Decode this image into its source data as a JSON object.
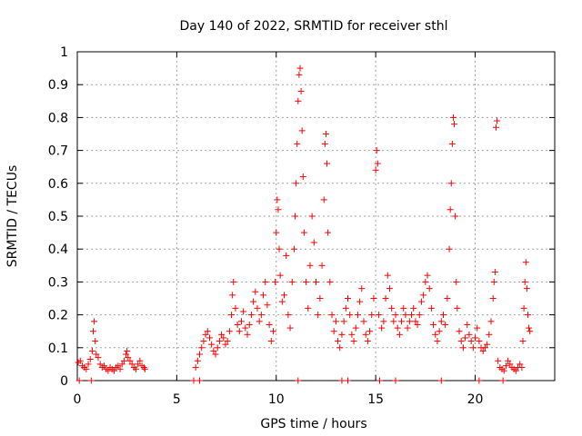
{
  "chart_data": {
    "type": "scatter",
    "title": "Day 140 of 2022, SRMTID for receiver sthl",
    "xlabel": "GPS time / hours",
    "ylabel": "SRMTID / TECUs",
    "xlim": [
      0,
      24
    ],
    "ylim": [
      0,
      1
    ],
    "x_ticks": [
      "0",
      "5",
      "10",
      "15",
      "20"
    ],
    "x_tick_values": [
      0,
      5,
      10,
      15,
      20
    ],
    "y_ticks": [
      "0",
      "0.1",
      "0.2",
      "0.3",
      "0.4",
      "0.5",
      "0.6",
      "0.7",
      "0.8",
      "0.9",
      "1"
    ],
    "y_tick_values": [
      0,
      0.1,
      0.2,
      0.3,
      0.4,
      0.5,
      0.6,
      0.7,
      0.8,
      0.9,
      1
    ],
    "grid": true,
    "marker": "+",
    "color": "#ff0000",
    "series": [
      {
        "name": "SRMTID",
        "points": [
          [
            0.05,
            0.055
          ],
          [
            0.15,
            0.06
          ],
          [
            0.25,
            0.045
          ],
          [
            0.35,
            0.04
          ],
          [
            0.45,
            0.035
          ],
          [
            0.55,
            0.05
          ],
          [
            0.65,
            0.065
          ],
          [
            0.75,
            0.09
          ],
          [
            0.8,
            0.15
          ],
          [
            0.85,
            0.18
          ],
          [
            0.9,
            0.12
          ],
          [
            0.95,
            0.08
          ],
          [
            1.05,
            0.07
          ],
          [
            1.15,
            0.05
          ],
          [
            1.25,
            0.04
          ],
          [
            1.35,
            0.045
          ],
          [
            1.45,
            0.035
          ],
          [
            1.55,
            0.03
          ],
          [
            1.65,
            0.04
          ],
          [
            1.75,
            0.035
          ],
          [
            1.85,
            0.03
          ],
          [
            1.95,
            0.04
          ],
          [
            2.05,
            0.045
          ],
          [
            2.15,
            0.035
          ],
          [
            2.25,
            0.05
          ],
          [
            2.35,
            0.06
          ],
          [
            2.45,
            0.08
          ],
          [
            2.5,
            0.09
          ],
          [
            2.55,
            0.07
          ],
          [
            2.65,
            0.06
          ],
          [
            2.75,
            0.05
          ],
          [
            2.85,
            0.04
          ],
          [
            2.95,
            0.035
          ],
          [
            3.05,
            0.05
          ],
          [
            3.15,
            0.06
          ],
          [
            3.25,
            0.045
          ],
          [
            3.35,
            0.04
          ],
          [
            3.4,
            0.035
          ],
          [
            0.1,
            0.0
          ],
          [
            0.7,
            0.0
          ],
          [
            5.85,
            0.0
          ],
          [
            6.15,
            0.0
          ],
          [
            11.1,
            0.0
          ],
          [
            13.3,
            0.0
          ],
          [
            13.6,
            0.0
          ],
          [
            15.2,
            0.0
          ],
          [
            16.0,
            0.0
          ],
          [
            18.3,
            0.0
          ],
          [
            20.2,
            0.0
          ],
          [
            21.4,
            0.0
          ],
          [
            5.95,
            0.04
          ],
          [
            6.05,
            0.06
          ],
          [
            6.15,
            0.08
          ],
          [
            6.25,
            0.1
          ],
          [
            6.35,
            0.12
          ],
          [
            6.45,
            0.14
          ],
          [
            6.55,
            0.15
          ],
          [
            6.65,
            0.13
          ],
          [
            6.75,
            0.11
          ],
          [
            6.85,
            0.09
          ],
          [
            6.95,
            0.08
          ],
          [
            7.05,
            0.1
          ],
          [
            7.15,
            0.12
          ],
          [
            7.25,
            0.14
          ],
          [
            7.35,
            0.13
          ],
          [
            7.45,
            0.11
          ],
          [
            7.55,
            0.12
          ],
          [
            7.65,
            0.15
          ],
          [
            7.75,
            0.2
          ],
          [
            7.8,
            0.26
          ],
          [
            7.85,
            0.3
          ],
          [
            7.95,
            0.22
          ],
          [
            8.05,
            0.17
          ],
          [
            8.15,
            0.15
          ],
          [
            8.25,
            0.18
          ],
          [
            8.35,
            0.21
          ],
          [
            8.45,
            0.16
          ],
          [
            8.55,
            0.14
          ],
          [
            8.65,
            0.17
          ],
          [
            8.75,
            0.2
          ],
          [
            8.85,
            0.24
          ],
          [
            8.95,
            0.27
          ],
          [
            9.05,
            0.22
          ],
          [
            9.15,
            0.18
          ],
          [
            9.25,
            0.2
          ],
          [
            9.35,
            0.26
          ],
          [
            9.45,
            0.3
          ],
          [
            9.55,
            0.23
          ],
          [
            9.65,
            0.17
          ],
          [
            9.75,
            0.12
          ],
          [
            9.85,
            0.15
          ],
          [
            9.95,
            0.3
          ],
          [
            10.0,
            0.45
          ],
          [
            10.05,
            0.55
          ],
          [
            10.1,
            0.52
          ],
          [
            10.15,
            0.4
          ],
          [
            10.2,
            0.32
          ],
          [
            10.3,
            0.24
          ],
          [
            10.4,
            0.26
          ],
          [
            10.5,
            0.38
          ],
          [
            10.6,
            0.2
          ],
          [
            10.7,
            0.16
          ],
          [
            10.8,
            0.3
          ],
          [
            10.9,
            0.4
          ],
          [
            10.95,
            0.5
          ],
          [
            11.0,
            0.6
          ],
          [
            11.05,
            0.72
          ],
          [
            11.1,
            0.85
          ],
          [
            11.15,
            0.93
          ],
          [
            11.2,
            0.95
          ],
          [
            11.25,
            0.88
          ],
          [
            11.3,
            0.76
          ],
          [
            11.35,
            0.62
          ],
          [
            11.4,
            0.45
          ],
          [
            11.5,
            0.3
          ],
          [
            11.6,
            0.22
          ],
          [
            11.7,
            0.35
          ],
          [
            11.8,
            0.5
          ],
          [
            11.9,
            0.42
          ],
          [
            12.0,
            0.3
          ],
          [
            12.1,
            0.2
          ],
          [
            12.2,
            0.25
          ],
          [
            12.3,
            0.35
          ],
          [
            12.4,
            0.55
          ],
          [
            12.45,
            0.72
          ],
          [
            12.5,
            0.75
          ],
          [
            12.55,
            0.66
          ],
          [
            12.6,
            0.45
          ],
          [
            12.7,
            0.3
          ],
          [
            12.8,
            0.2
          ],
          [
            12.9,
            0.15
          ],
          [
            13.0,
            0.18
          ],
          [
            13.1,
            0.12
          ],
          [
            13.2,
            0.1
          ],
          [
            13.3,
            0.14
          ],
          [
            13.4,
            0.18
          ],
          [
            13.5,
            0.22
          ],
          [
            13.6,
            0.25
          ],
          [
            13.7,
            0.2
          ],
          [
            13.8,
            0.14
          ],
          [
            13.9,
            0.12
          ],
          [
            14.0,
            0.16
          ],
          [
            14.1,
            0.2
          ],
          [
            14.2,
            0.24
          ],
          [
            14.3,
            0.28
          ],
          [
            14.4,
            0.18
          ],
          [
            14.5,
            0.14
          ],
          [
            14.6,
            0.12
          ],
          [
            14.7,
            0.15
          ],
          [
            14.8,
            0.2
          ],
          [
            14.9,
            0.25
          ],
          [
            15.0,
            0.64
          ],
          [
            15.05,
            0.7
          ],
          [
            15.1,
            0.66
          ],
          [
            15.15,
            0.2
          ],
          [
            15.3,
            0.16
          ],
          [
            15.4,
            0.18
          ],
          [
            15.5,
            0.25
          ],
          [
            15.6,
            0.32
          ],
          [
            15.7,
            0.28
          ],
          [
            15.8,
            0.22
          ],
          [
            15.9,
            0.18
          ],
          [
            16.0,
            0.2
          ],
          [
            16.1,
            0.16
          ],
          [
            16.2,
            0.14
          ],
          [
            16.3,
            0.18
          ],
          [
            16.4,
            0.22
          ],
          [
            16.5,
            0.2
          ],
          [
            16.6,
            0.16
          ],
          [
            16.7,
            0.18
          ],
          [
            16.8,
            0.2
          ],
          [
            16.9,
            0.22
          ],
          [
            17.0,
            0.18
          ],
          [
            17.1,
            0.17
          ],
          [
            17.2,
            0.2
          ],
          [
            17.3,
            0.24
          ],
          [
            17.4,
            0.26
          ],
          [
            17.5,
            0.3
          ],
          [
            17.6,
            0.32
          ],
          [
            17.7,
            0.28
          ],
          [
            17.8,
            0.22
          ],
          [
            17.9,
            0.17
          ],
          [
            18.0,
            0.14
          ],
          [
            18.1,
            0.12
          ],
          [
            18.2,
            0.15
          ],
          [
            18.3,
            0.18
          ],
          [
            18.4,
            0.2
          ],
          [
            18.5,
            0.17
          ],
          [
            18.6,
            0.25
          ],
          [
            18.7,
            0.4
          ],
          [
            18.75,
            0.52
          ],
          [
            18.8,
            0.6
          ],
          [
            18.85,
            0.72
          ],
          [
            18.9,
            0.8
          ],
          [
            18.95,
            0.78
          ],
          [
            19.0,
            0.5
          ],
          [
            19.05,
            0.3
          ],
          [
            19.1,
            0.22
          ],
          [
            19.2,
            0.15
          ],
          [
            19.3,
            0.12
          ],
          [
            19.4,
            0.1
          ],
          [
            19.5,
            0.13
          ],
          [
            19.6,
            0.17
          ],
          [
            19.7,
            0.14
          ],
          [
            19.8,
            0.12
          ],
          [
            19.9,
            0.1
          ],
          [
            20.0,
            0.13
          ],
          [
            20.1,
            0.16
          ],
          [
            20.2,
            0.12
          ],
          [
            20.3,
            0.1
          ],
          [
            20.4,
            0.09
          ],
          [
            20.5,
            0.1
          ],
          [
            20.6,
            0.11
          ],
          [
            20.7,
            0.14
          ],
          [
            20.8,
            0.18
          ],
          [
            20.9,
            0.25
          ],
          [
            20.95,
            0.3
          ],
          [
            21.0,
            0.33
          ],
          [
            21.05,
            0.77
          ],
          [
            21.1,
            0.79
          ],
          [
            21.15,
            0.06
          ],
          [
            21.25,
            0.04
          ],
          [
            21.35,
            0.035
          ],
          [
            21.45,
            0.03
          ],
          [
            21.55,
            0.045
          ],
          [
            21.65,
            0.06
          ],
          [
            21.75,
            0.05
          ],
          [
            21.85,
            0.04
          ],
          [
            21.95,
            0.035
          ],
          [
            22.05,
            0.03
          ],
          [
            22.15,
            0.04
          ],
          [
            22.25,
            0.05
          ],
          [
            22.35,
            0.04
          ],
          [
            22.4,
            0.12
          ],
          [
            22.45,
            0.22
          ],
          [
            22.5,
            0.3
          ],
          [
            22.55,
            0.36
          ],
          [
            22.6,
            0.28
          ],
          [
            22.65,
            0.2
          ],
          [
            22.7,
            0.16
          ],
          [
            22.75,
            0.15
          ]
        ]
      }
    ]
  }
}
